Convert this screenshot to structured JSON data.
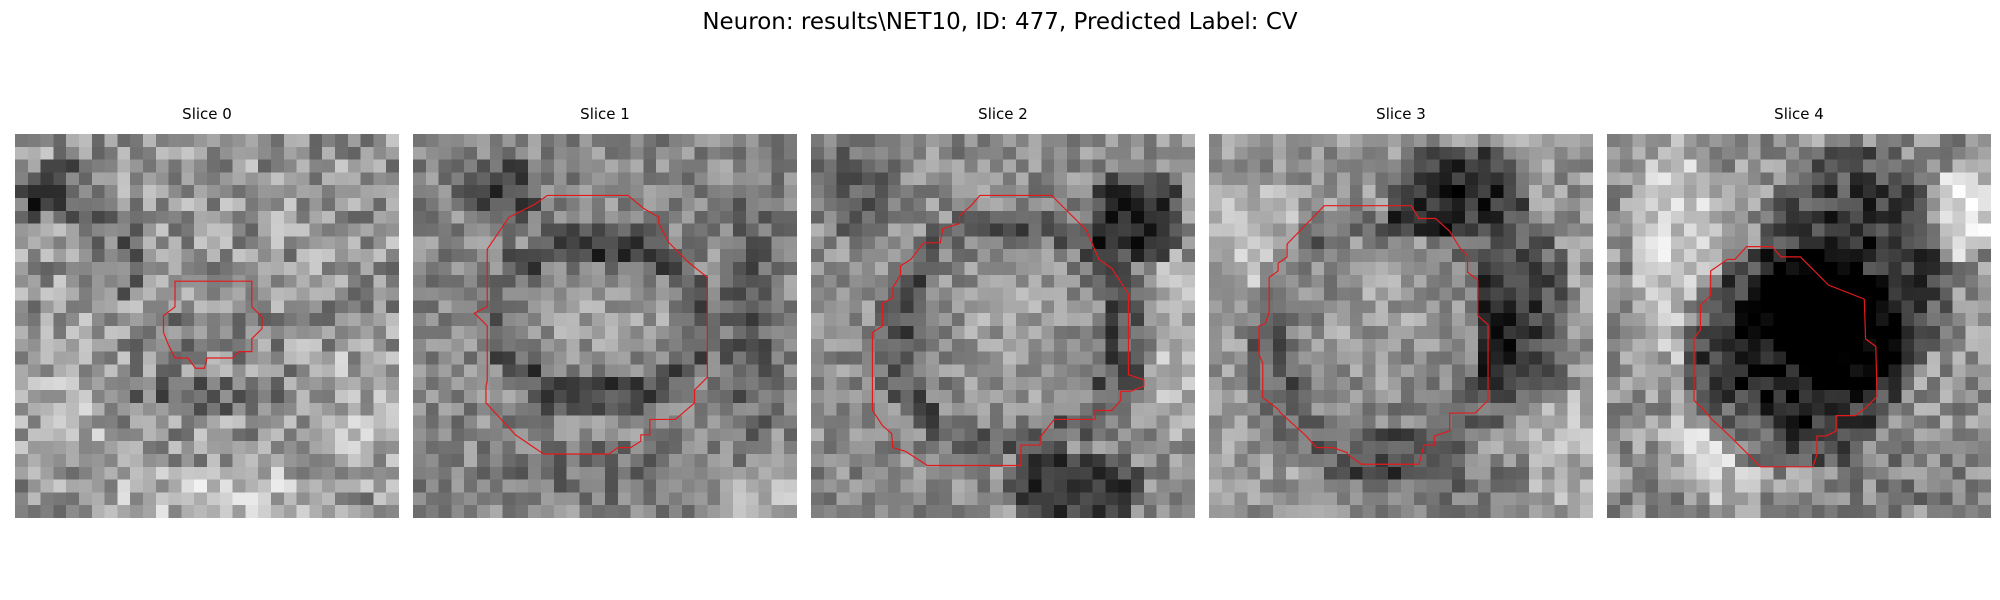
{
  "figure": {
    "title": "Neuron: results\\NET10, ID: 477, Predicted Label: CV",
    "contour_color": "#e31a1c",
    "colormap": "grayscale"
  },
  "panels": [
    {
      "title": "Slice 0"
    },
    {
      "title": "Slice 1"
    },
    {
      "title": "Slice 2"
    },
    {
      "title": "Slice 3"
    },
    {
      "title": "Slice 4"
    }
  ]
}
